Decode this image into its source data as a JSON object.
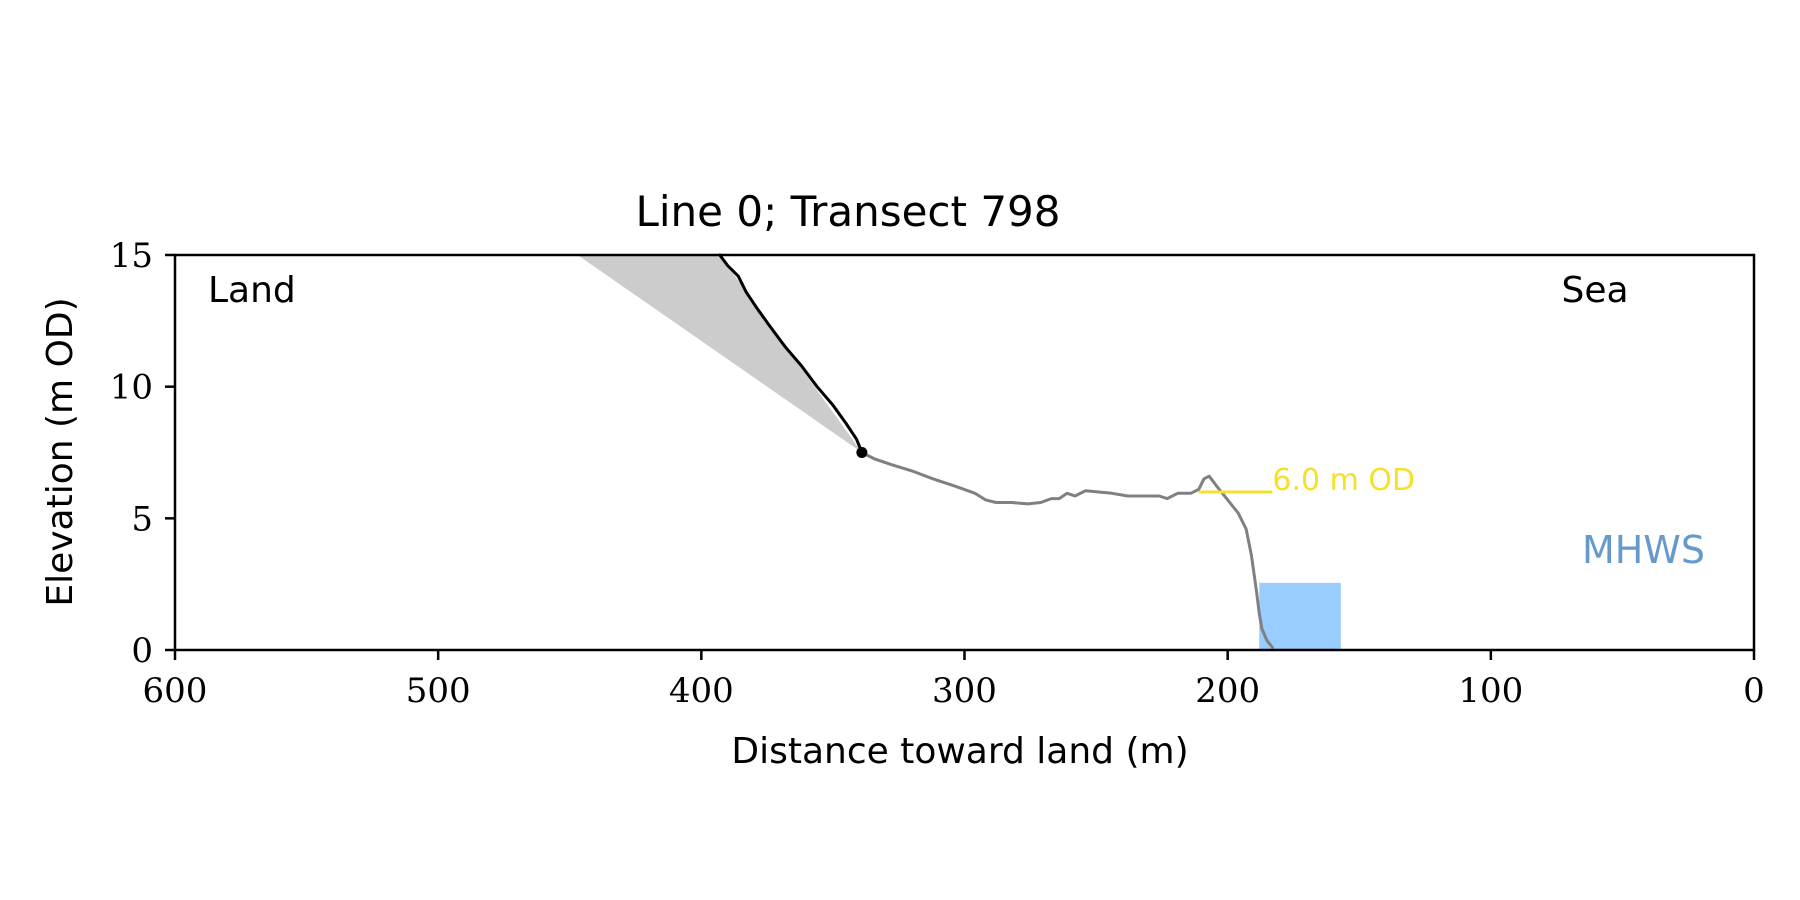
{
  "chart_data": {
    "type": "line",
    "title": "Line 0; Transect 798",
    "xlabel": "Distance toward land (m)",
    "ylabel": "Elevation (m OD)",
    "xlim": [
      600,
      0
    ],
    "ylim": [
      0,
      15
    ],
    "x_ticks": [
      "600",
      "500",
      "400",
      "300",
      "200",
      "100",
      "0"
    ],
    "y_ticks": [
      "0",
      "5",
      "10",
      "15"
    ],
    "grid": false,
    "corner_labels": {
      "left": "Land",
      "right": "Sea"
    },
    "colors": {
      "cliff": "#000000",
      "profile": "#808080",
      "wedge": "#cccccc",
      "level": "#f5e02a",
      "mhws_box": "#99ccff",
      "mhws_text": "#6699cc"
    },
    "series": [
      {
        "role": "cliff",
        "points": [
          [
            393,
            15.0
          ],
          [
            390,
            14.6
          ],
          [
            386,
            14.2
          ],
          [
            383,
            13.6
          ],
          [
            379,
            13.0
          ],
          [
            374,
            12.3
          ],
          [
            368,
            11.5
          ],
          [
            362,
            10.8
          ],
          [
            356,
            10.0
          ],
          [
            350,
            9.3
          ],
          [
            345,
            8.6
          ],
          [
            341,
            8.0
          ],
          [
            339,
            7.5
          ]
        ]
      },
      {
        "role": "profile",
        "points": [
          [
            339,
            7.5
          ],
          [
            334,
            7.25
          ],
          [
            328,
            7.05
          ],
          [
            320,
            6.8
          ],
          [
            312,
            6.5
          ],
          [
            303,
            6.2
          ],
          [
            296,
            5.95
          ],
          [
            292,
            5.7
          ],
          [
            288,
            5.6
          ],
          [
            282,
            5.6
          ],
          [
            276,
            5.55
          ],
          [
            271,
            5.6
          ],
          [
            267,
            5.75
          ],
          [
            264,
            5.75
          ],
          [
            261,
            5.95
          ],
          [
            258,
            5.85
          ],
          [
            254,
            6.05
          ],
          [
            249,
            6.0
          ],
          [
            244,
            5.95
          ],
          [
            238,
            5.85
          ],
          [
            232,
            5.85
          ],
          [
            226,
            5.85
          ],
          [
            223,
            5.75
          ],
          [
            219,
            5.95
          ],
          [
            214,
            5.95
          ],
          [
            211,
            6.1
          ],
          [
            209,
            6.5
          ],
          [
            207,
            6.6
          ],
          [
            204,
            6.2
          ],
          [
            200,
            5.7
          ],
          [
            196,
            5.2
          ],
          [
            193,
            4.6
          ],
          [
            191,
            3.6
          ],
          [
            189,
            2.2
          ],
          [
            188,
            1.4
          ],
          [
            187,
            0.8
          ],
          [
            185,
            0.35
          ],
          [
            183,
            0.1
          ]
        ]
      }
    ],
    "cliff_toe": {
      "x": 339,
      "y": 7.5
    },
    "shaded_wedge": [
      [
        447,
        15
      ],
      [
        393,
        15
      ],
      [
        339,
        7.5
      ]
    ],
    "level_line": {
      "label": "6.0 m OD",
      "y": 6.0,
      "x_from": 211,
      "x_to": 183
    },
    "mhws": {
      "label": "MHWS",
      "x_from": 188,
      "x_to": 157,
      "y_from": 0,
      "y_to": 2.55
    }
  }
}
